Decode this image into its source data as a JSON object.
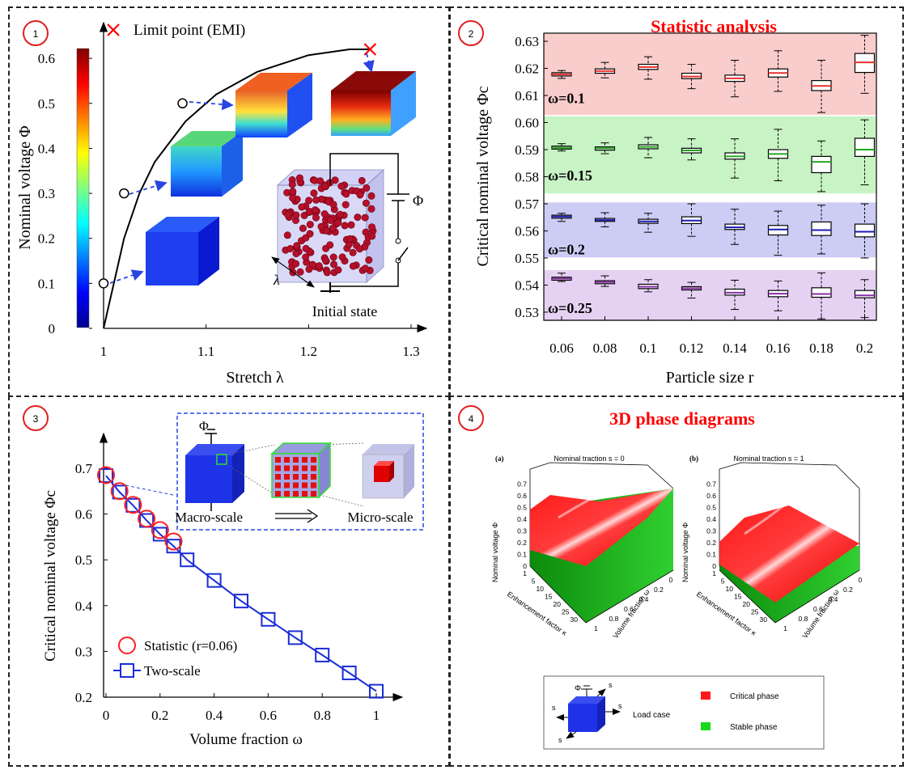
{
  "panels": {
    "p1": {
      "badge": "1"
    },
    "p2": {
      "badge": "2",
      "title": "Statistic analysis"
    },
    "p3": {
      "badge": "3"
    },
    "p4": {
      "badge": "4",
      "title": "3D phase diagrams"
    }
  },
  "chart_data": [
    {
      "id": "panel1",
      "type": "line",
      "xlabel": "Stretch λ",
      "ylabel": "Nominal voltage Φ",
      "xlim": [
        0.98,
        1.3
      ],
      "ylim": [
        0,
        0.62
      ],
      "xticks": [
        "1",
        "1.1",
        "1.2",
        "1.3"
      ],
      "yticks": [
        "0",
        "0.1",
        "0.2",
        "0.3",
        "0.4",
        "0.5",
        "0.6"
      ],
      "legend": "Limit point (EMI)",
      "series": [
        {
          "x": [
            1.0,
            1.005,
            1.01,
            1.02,
            1.035,
            1.05,
            1.08,
            1.11,
            1.15,
            1.2,
            1.24,
            1.26
          ],
          "values": [
            0.0,
            0.05,
            0.1,
            0.2,
            0.3,
            0.37,
            0.46,
            0.52,
            0.57,
            0.607,
            0.62,
            0.62
          ]
        }
      ],
      "markers_circle": [
        {
          "x": 1.0,
          "y": 0.1
        },
        {
          "x": 1.02,
          "y": 0.3
        },
        {
          "x": 1.077,
          "y": 0.5
        }
      ],
      "marker_limit": {
        "x": 1.26,
        "y": 0.62
      },
      "annotations": [
        "Φ",
        "λ",
        "Initial state"
      ]
    },
    {
      "id": "panel2",
      "type": "box",
      "xlabel": "Particle size r",
      "ylabel": "Critical nominal voltage Φc",
      "categories": [
        "0.06",
        "0.08",
        "0.1",
        "0.12",
        "0.14",
        "0.16",
        "0.18",
        "0.2"
      ],
      "ylim": [
        0.527,
        0.633
      ],
      "yticks": [
        "0.53",
        "0.54",
        "0.55",
        "0.56",
        "0.57",
        "0.58",
        "0.59",
        "0.60",
        "0.61",
        "0.62",
        "0.63"
      ],
      "series": [
        {
          "name": "ω=0.1",
          "color": "#e8302c",
          "band": "#f9cdcc",
          "boxes": [
            [
              0.6163,
              0.6172,
              0.6178,
              0.6184,
              0.6192
            ],
            [
              0.6165,
              0.6182,
              0.619,
              0.6198,
              0.6222
            ],
            [
              0.616,
              0.6196,
              0.6205,
              0.6215,
              0.6243
            ],
            [
              0.6125,
              0.6162,
              0.617,
              0.6182,
              0.6215
            ],
            [
              0.6095,
              0.6152,
              0.6163,
              0.6175,
              0.623
            ],
            [
              0.6115,
              0.6168,
              0.6183,
              0.6198,
              0.6265
            ],
            [
              0.6037,
              0.6118,
              0.6135,
              0.6155,
              0.623
            ],
            [
              0.6108,
              0.6185,
              0.6222,
              0.6255,
              0.6322
            ]
          ]
        },
        {
          "name": "ω=0.15",
          "color": "#22a822",
          "band": "#c8f3c4",
          "boxes": [
            [
              0.5895,
              0.5902,
              0.5907,
              0.5913,
              0.5922
            ],
            [
              0.5885,
              0.5898,
              0.5905,
              0.591,
              0.5925
            ],
            [
              0.587,
              0.5903,
              0.591,
              0.5918,
              0.5945
            ],
            [
              0.5862,
              0.5888,
              0.5897,
              0.5905,
              0.594
            ],
            [
              0.5795,
              0.5865,
              0.5875,
              0.5888,
              0.594
            ],
            [
              0.5785,
              0.5868,
              0.5884,
              0.59,
              0.5975
            ],
            [
              0.5745,
              0.5815,
              0.5855,
              0.5875,
              0.5932
            ],
            [
              0.577,
              0.5875,
              0.59,
              0.5942,
              0.601
            ]
          ]
        },
        {
          "name": "ω=0.2",
          "color": "#1a1ab3",
          "band": "#ccccf4",
          "boxes": [
            [
              0.5635,
              0.5647,
              0.5653,
              0.5658,
              0.5665
            ],
            [
              0.5615,
              0.5635,
              0.564,
              0.5646,
              0.5667
            ],
            [
              0.5595,
              0.5628,
              0.5635,
              0.5643,
              0.5665
            ],
            [
              0.558,
              0.5627,
              0.5638,
              0.5652,
              0.57
            ],
            [
              0.555,
              0.5605,
              0.5613,
              0.5625,
              0.568
            ],
            [
              0.551,
              0.5585,
              0.5605,
              0.562,
              0.5673
            ],
            [
              0.5515,
              0.5583,
              0.5603,
              0.5633,
              0.5695
            ],
            [
              0.55,
              0.5578,
              0.5597,
              0.5625,
              0.57
            ]
          ]
        },
        {
          "name": "ω=0.25",
          "color": "#8a2ca8",
          "band": "#e5d2f2",
          "boxes": [
            [
              0.5413,
              0.5418,
              0.5424,
              0.5429,
              0.5444
            ],
            [
              0.5395,
              0.5405,
              0.5411,
              0.5416,
              0.5434
            ],
            [
              0.5375,
              0.5387,
              0.5394,
              0.5403,
              0.542
            ],
            [
              0.5352,
              0.5382,
              0.5388,
              0.5394,
              0.541
            ],
            [
              0.531,
              0.5363,
              0.5372,
              0.5385,
              0.5418
            ],
            [
              0.5305,
              0.5357,
              0.5368,
              0.538,
              0.5415
            ],
            [
              0.5275,
              0.5355,
              0.5367,
              0.539,
              0.5445
            ],
            [
              0.528,
              0.5353,
              0.5362,
              0.538,
              0.542
            ]
          ]
        }
      ]
    },
    {
      "id": "panel3",
      "type": "line",
      "xlabel": "Volume fraction ω",
      "ylabel": "Critical nominal voltage Φc",
      "xlim": [
        0,
        1
      ],
      "ylim": [
        0.2,
        0.72
      ],
      "xticks": [
        "0",
        "0.2",
        "0.4",
        "0.6",
        "0.8",
        "1"
      ],
      "yticks": [
        "0.2",
        "0.3",
        "0.4",
        "0.5",
        "0.6",
        "0.7"
      ],
      "series": [
        {
          "name": "Statistic (r=0.06)",
          "x": [
            0.0,
            0.05,
            0.1,
            0.15,
            0.2,
            0.25
          ],
          "values": [
            0.685,
            0.65,
            0.62,
            0.59,
            0.565,
            0.54
          ]
        },
        {
          "name": "Two-scale",
          "x": [
            0.0,
            0.05,
            0.1,
            0.15,
            0.2,
            0.25,
            0.3,
            0.4,
            0.5,
            0.6,
            0.7,
            0.8,
            0.9,
            1.0
          ],
          "values": [
            0.684,
            0.648,
            0.619,
            0.586,
            0.556,
            0.53,
            0.5,
            0.455,
            0.41,
            0.37,
            0.33,
            0.292,
            0.253,
            0.213
          ]
        }
      ],
      "inset_labels": [
        "Φ",
        "Macro-scale",
        "Micro-scale"
      ]
    },
    {
      "id": "panel4",
      "type": "surface3d",
      "subplots": [
        {
          "tag": "(a)",
          "title": "Nominal traction  s = 0"
        },
        {
          "tag": "(b)",
          "title": "Nominal traction  s = 1"
        }
      ],
      "zlabel": "Nominal voltage Φ",
      "xlabel": "Volume fraction ω",
      "ylabel": "Enhancement factor κ",
      "zticks": [
        "0",
        "0.1",
        "0.2",
        "0.3",
        "0.4",
        "0.5",
        "0.6",
        "0.7"
      ],
      "xticks": [
        "0",
        "0.2",
        "0.4",
        "0.6",
        "0.8",
        "1"
      ],
      "yticks": [
        "1",
        "5",
        "10",
        "15",
        "20",
        "25",
        "30"
      ],
      "legend": {
        "load_case": "Load case",
        "phi": "Φ",
        "s": "s",
        "critical": "Critical phase",
        "stable": "Stable phase"
      }
    }
  ]
}
